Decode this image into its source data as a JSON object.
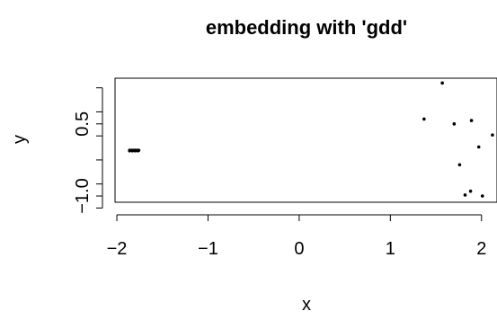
{
  "chart_data": {
    "type": "scatter",
    "title": "embedding with 'gdd'",
    "xlabel": "x",
    "ylabel": "y",
    "xlim": [
      -2.02,
      2.17
    ],
    "ylim": [
      -1.13,
      1.45
    ],
    "x_ticks": [
      -2,
      -1,
      0,
      1,
      2
    ],
    "x_tick_labels": [
      "−2",
      "−1",
      "0",
      "1",
      "2"
    ],
    "y_ticks": [
      -1.0,
      0.5
    ],
    "y_tick_labels": [
      "−1.0",
      "0.5"
    ],
    "y_minor_ticks": [
      -1.25,
      -0.75,
      -0.25,
      0.25,
      0.75,
      1.25
    ],
    "grid": false,
    "marker_color": "#000000",
    "series": [
      {
        "points": [
          [
            -1.86,
            -0.05
          ],
          [
            -1.84,
            -0.05
          ],
          [
            -1.82,
            -0.05
          ],
          [
            -1.8,
            -0.05
          ],
          [
            -1.78,
            -0.05
          ],
          [
            -1.76,
            -0.05
          ],
          [
            -1.86,
            -0.06
          ],
          [
            -1.83,
            -0.06
          ],
          [
            -1.8,
            -0.06
          ],
          [
            -1.77,
            -0.06
          ],
          [
            1.57,
            1.35
          ],
          [
            1.37,
            0.6
          ],
          [
            1.7,
            0.5
          ],
          [
            1.89,
            0.57
          ],
          [
            2.12,
            0.27
          ],
          [
            1.97,
            0.02
          ],
          [
            1.76,
            -0.35
          ],
          [
            1.88,
            -0.9
          ],
          [
            1.82,
            -0.98
          ],
          [
            2.01,
            -1.0
          ]
        ]
      }
    ]
  }
}
